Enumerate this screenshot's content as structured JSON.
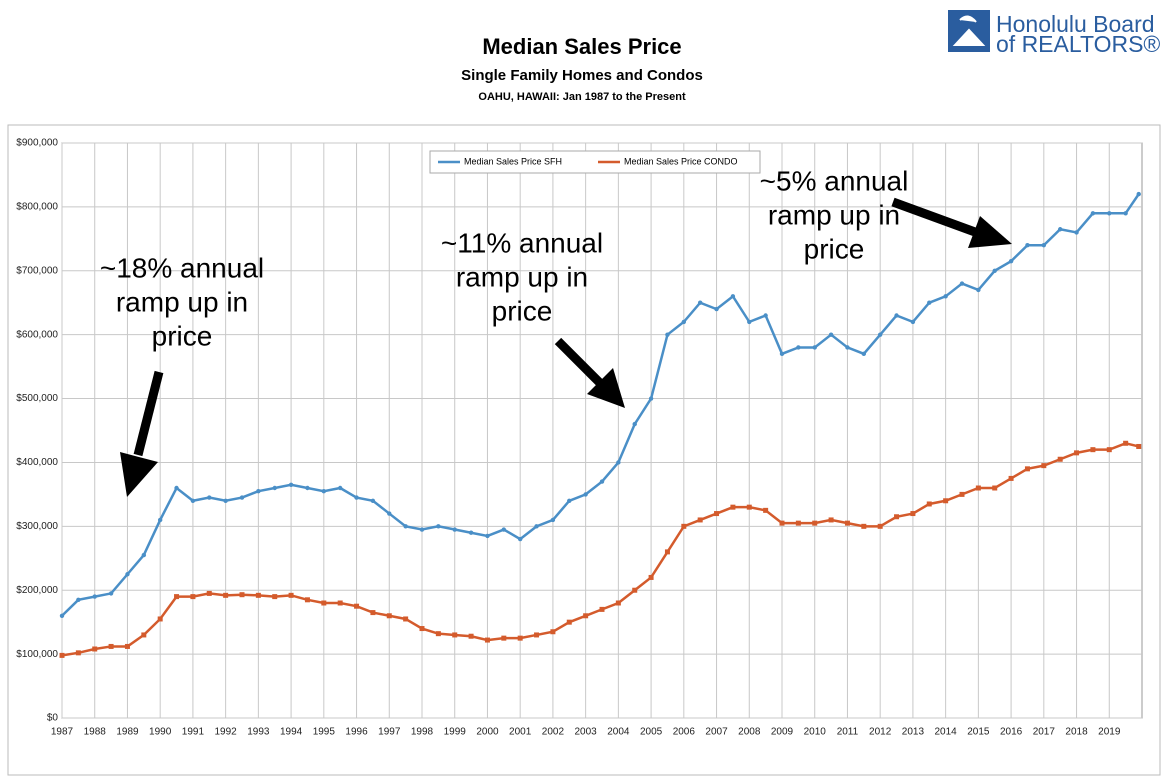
{
  "logo": {
    "line1": "Honolulu Board",
    "line2": "of REALTORS®"
  },
  "chart_data": {
    "type": "line",
    "title": "Median Sales Price",
    "subtitle": "Single Family Homes and Condos",
    "caption": "OAHU, HAWAII: Jan 1987 to the Present",
    "x": [
      1987.0,
      1987.5,
      1988.0,
      1988.5,
      1989.0,
      1989.5,
      1990.0,
      1990.5,
      1991.0,
      1991.5,
      1992.0,
      1992.5,
      1993.0,
      1993.5,
      1994.0,
      1994.5,
      1995.0,
      1995.5,
      1996.0,
      1996.5,
      1997.0,
      1997.5,
      1998.0,
      1998.5,
      1999.0,
      1999.5,
      2000.0,
      2000.5,
      2001.0,
      2001.5,
      2002.0,
      2002.5,
      2003.0,
      2003.5,
      2004.0,
      2004.5,
      2005.0,
      2005.5,
      2006.0,
      2006.5,
      2007.0,
      2007.5,
      2008.0,
      2008.5,
      2009.0,
      2009.5,
      2010.0,
      2010.5,
      2011.0,
      2011.5,
      2012.0,
      2012.5,
      2013.0,
      2013.5,
      2014.0,
      2014.5,
      2015.0,
      2015.5,
      2016.0,
      2016.5,
      2017.0,
      2017.5,
      2018.0,
      2018.5,
      2019.0,
      2019.5,
      2019.9
    ],
    "series": [
      {
        "name": "Median Sales Price SFH",
        "color": "#4a8fc7",
        "marker": "circle",
        "values": [
          160000,
          185000,
          190000,
          195000,
          225000,
          255000,
          310000,
          360000,
          340000,
          345000,
          340000,
          345000,
          355000,
          360000,
          365000,
          360000,
          355000,
          360000,
          345000,
          340000,
          320000,
          300000,
          295000,
          300000,
          295000,
          290000,
          285000,
          295000,
          280000,
          300000,
          310000,
          340000,
          350000,
          370000,
          400000,
          460000,
          500000,
          600000,
          620000,
          650000,
          640000,
          660000,
          620000,
          630000,
          570000,
          580000,
          580000,
          600000,
          580000,
          570000,
          600000,
          630000,
          620000,
          650000,
          660000,
          680000,
          670000,
          700000,
          715000,
          740000,
          740000,
          765000,
          760000,
          790000,
          790000,
          790000,
          820000
        ]
      },
      {
        "name": "Median Sales Price CONDO",
        "color": "#d45b2c",
        "marker": "square",
        "values": [
          98000,
          102000,
          108000,
          112000,
          112000,
          130000,
          155000,
          190000,
          190000,
          195000,
          192000,
          193000,
          192000,
          190000,
          192000,
          185000,
          180000,
          180000,
          175000,
          165000,
          160000,
          155000,
          140000,
          132000,
          130000,
          128000,
          122000,
          125000,
          125000,
          130000,
          135000,
          150000,
          160000,
          170000,
          180000,
          200000,
          220000,
          260000,
          300000,
          310000,
          320000,
          330000,
          330000,
          325000,
          305000,
          305000,
          305000,
          310000,
          305000,
          300000,
          300000,
          315000,
          320000,
          335000,
          340000,
          350000,
          360000,
          360000,
          375000,
          390000,
          395000,
          405000,
          415000,
          420000,
          420000,
          430000,
          425000
        ]
      }
    ],
    "xlim": [
      1987,
      2020
    ],
    "xticks": [
      1987,
      1988,
      1989,
      1990,
      1991,
      1992,
      1993,
      1994,
      1995,
      1996,
      1997,
      1998,
      1999,
      2000,
      2001,
      2002,
      2003,
      2004,
      2005,
      2006,
      2007,
      2008,
      2009,
      2010,
      2011,
      2012,
      2013,
      2014,
      2015,
      2016,
      2017,
      2018,
      2019
    ],
    "ylim": [
      0,
      900000
    ],
    "yticks": [
      {
        "value": 0,
        "label": "$0"
      },
      {
        "value": 100000,
        "label": "$100,000"
      },
      {
        "value": 200000,
        "label": "$200,000"
      },
      {
        "value": 300000,
        "label": "$300,000"
      },
      {
        "value": 400000,
        "label": "$400,000"
      },
      {
        "value": 500000,
        "label": "$500,000"
      },
      {
        "value": 600000,
        "label": "$600,000"
      },
      {
        "value": 700000,
        "label": "$700,000"
      },
      {
        "value": 800000,
        "label": "$800,000"
      },
      {
        "value": 900000,
        "label": "$900,000"
      }
    ],
    "grid": true,
    "legend": "top",
    "annotations": [
      {
        "text": [
          "~18% annual",
          "ramp up in",
          "price"
        ]
      },
      {
        "text": [
          "~11% annual",
          "ramp up in",
          "price"
        ]
      },
      {
        "text": [
          "~5% annual",
          "ramp up in",
          "price"
        ]
      }
    ]
  }
}
